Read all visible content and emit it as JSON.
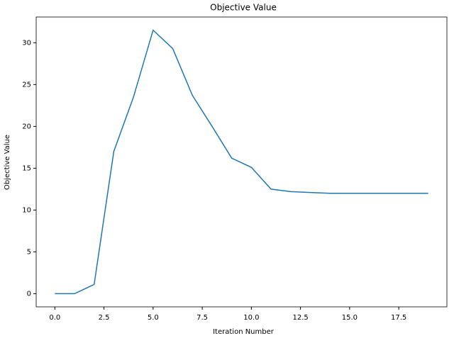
{
  "chart_data": {
    "type": "line",
    "title": "Objective Value",
    "x_label": "Iteration Number",
    "y_label": "Objective Value",
    "x": [
      0,
      1,
      2,
      3,
      4,
      5,
      6,
      7,
      8,
      9,
      10,
      11,
      12,
      13,
      14,
      15,
      16,
      17,
      18,
      19
    ],
    "series": [
      {
        "color": "#1f77b4",
        "values": [
          0,
          0,
          1.1,
          17,
          23.5,
          31.5,
          29.3,
          23.7,
          20,
          16.2,
          15.1,
          12.5,
          12.2,
          12.1,
          12,
          12,
          12,
          12,
          12,
          12
        ]
      }
    ],
    "xlim": [
      -0.95,
      19.95
    ],
    "ylim": [
      -1.575,
      33.075
    ],
    "xticks": [
      {
        "value": 0,
        "label": "0.0"
      },
      {
        "value": 2.5,
        "label": "2.5"
      },
      {
        "value": 5,
        "label": "5.0"
      },
      {
        "value": 7.5,
        "label": "7.5"
      },
      {
        "value": 10,
        "label": "10.0"
      },
      {
        "value": 12.5,
        "label": "12.5"
      },
      {
        "value": 15,
        "label": "15.0"
      },
      {
        "value": 17.5,
        "label": "17.5"
      }
    ],
    "yticks": [
      0,
      5,
      10,
      15,
      20,
      25,
      30
    ]
  }
}
